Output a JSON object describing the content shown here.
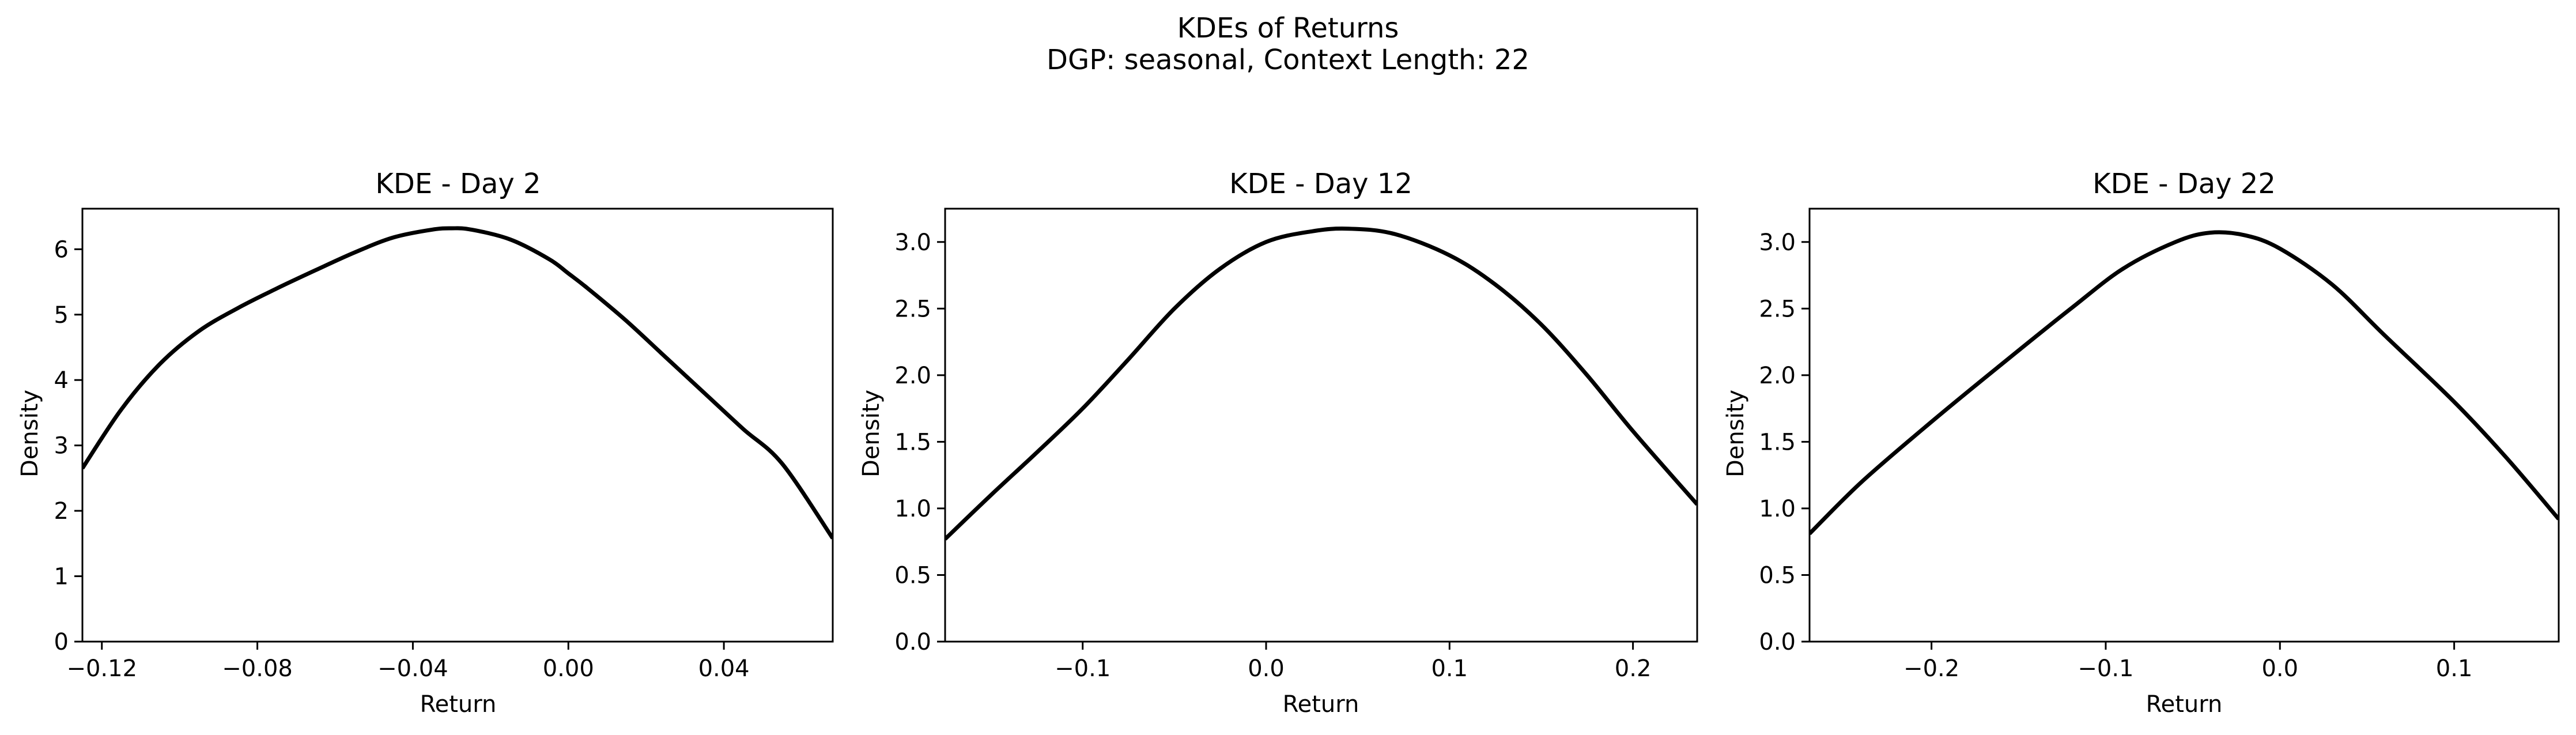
{
  "figure": {
    "title_line1": "KDEs of Returns",
    "title_line2": "DGP: seasonal, Context Length: 22",
    "line_color": "#000000"
  },
  "chart_data": [
    {
      "type": "line",
      "title": "KDE - Day 2",
      "xlabel": "Return",
      "ylabel": "Density",
      "xlim": [
        -0.125,
        0.068
      ],
      "ylim": [
        0,
        6.62
      ],
      "xticks": [
        -0.12,
        -0.08,
        -0.04,
        0.0,
        0.04
      ],
      "xtick_labels": [
        "−0.12",
        "−0.08",
        "−0.04",
        "0.00",
        "0.04"
      ],
      "yticks": [
        0,
        1,
        2,
        3,
        4,
        5,
        6
      ],
      "ytick_labels": [
        "0",
        "1",
        "2",
        "3",
        "4",
        "5",
        "6"
      ],
      "x": [
        -0.125,
        -0.115,
        -0.105,
        -0.095,
        -0.085,
        -0.075,
        -0.065,
        -0.055,
        -0.045,
        -0.035,
        -0.03,
        -0.025,
        -0.015,
        -0.005,
        0.0,
        0.005,
        0.015,
        0.025,
        0.035,
        0.045,
        0.055,
        0.068
      ],
      "y": [
        2.65,
        3.55,
        4.25,
        4.75,
        5.1,
        5.4,
        5.68,
        5.95,
        6.18,
        6.3,
        6.32,
        6.3,
        6.15,
        5.85,
        5.63,
        5.4,
        4.9,
        4.35,
        3.8,
        3.25,
        2.72,
        1.58
      ]
    },
    {
      "type": "line",
      "title": "KDE - Day 12",
      "xlabel": "Return",
      "ylabel": "Density",
      "xlim": [
        -0.175,
        0.235
      ],
      "ylim": [
        0,
        3.25
      ],
      "xticks": [
        -0.1,
        0.0,
        0.1,
        0.2
      ],
      "xtick_labels": [
        "−0.1",
        "0.0",
        "0.1",
        "0.2"
      ],
      "yticks": [
        0,
        0.5,
        1.0,
        1.5,
        2.0,
        2.5,
        3.0
      ],
      "ytick_labels": [
        "0.0",
        "0.5",
        "1.0",
        "1.5",
        "2.0",
        "2.5",
        "3.0"
      ],
      "x": [
        -0.175,
        -0.15,
        -0.125,
        -0.1,
        -0.075,
        -0.05,
        -0.025,
        0.0,
        0.025,
        0.045,
        0.07,
        0.1,
        0.125,
        0.15,
        0.175,
        0.2,
        0.235
      ],
      "y": [
        0.77,
        1.1,
        1.42,
        1.75,
        2.12,
        2.5,
        2.8,
        3.0,
        3.08,
        3.1,
        3.06,
        2.9,
        2.68,
        2.38,
        2.0,
        1.58,
        1.03
      ]
    },
    {
      "type": "line",
      "title": "KDE - Day 22",
      "xlabel": "Return",
      "ylabel": "Density",
      "xlim": [
        -0.27,
        0.16
      ],
      "ylim": [
        0,
        3.25
      ],
      "xticks": [
        -0.2,
        -0.1,
        0.0,
        0.1
      ],
      "xtick_labels": [
        "−0.2",
        "−0.1",
        "0.0",
        "0.1"
      ],
      "yticks": [
        0,
        0.5,
        1.0,
        1.5,
        2.0,
        2.5,
        3.0
      ],
      "ytick_labels": [
        "0.0",
        "0.5",
        "1.0",
        "1.5",
        "2.0",
        "2.5",
        "3.0"
      ],
      "x": [
        -0.27,
        -0.24,
        -0.2,
        -0.16,
        -0.12,
        -0.09,
        -0.06,
        -0.04,
        -0.02,
        0.0,
        0.03,
        0.06,
        0.1,
        0.13,
        0.16
      ],
      "y": [
        0.81,
        1.2,
        1.65,
        2.08,
        2.5,
        2.8,
        3.0,
        3.07,
        3.05,
        2.95,
        2.68,
        2.3,
        1.8,
        1.38,
        0.92
      ]
    }
  ]
}
